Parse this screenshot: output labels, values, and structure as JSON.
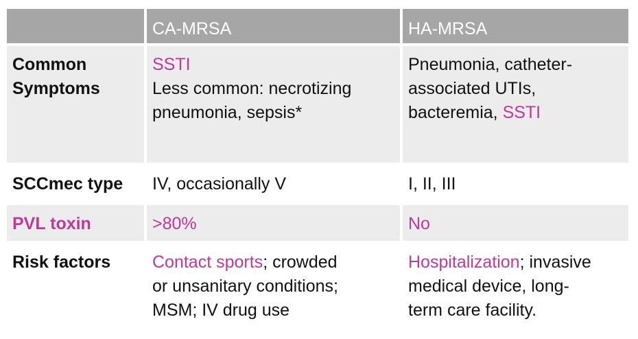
{
  "header": {
    "col1": "",
    "col2": "CA-MRSA",
    "col3": "HA-MRSA"
  },
  "rows": {
    "symptoms": {
      "label_line1": "Common",
      "label_line2": "Symptoms",
      "ca_highlight": "SSTI",
      "ca_line2": "Less common: necrotizing",
      "ca_line3": "pneumonia, sepsis*",
      "ha_line1": "Pneumonia, catheter-",
      "ha_line2": "associated UTIs,",
      "ha_line3_prefix": "bacteremia, ",
      "ha_line3_highlight": "SSTI"
    },
    "sccmec": {
      "label": "SCCmec type",
      "ca": "IV, occasionally V",
      "ha": "I, II, III"
    },
    "pvl": {
      "label": "PVL toxin",
      "ca": ">80%",
      "ha": "No"
    },
    "risk": {
      "label": "Risk factors",
      "ca_highlight": "Contact sports",
      "ca_line1_rest": "; crowded",
      "ca_line2": "or unsanitary conditions;",
      "ca_line3": "MSM; IV drug use",
      "ha_highlight": "Hospitalization",
      "ha_line1_rest": "; invasive",
      "ha_line2": "medical device, long-",
      "ha_line3": "term care facility."
    }
  },
  "colors": {
    "header_bg": "#a6a6a6",
    "band_bg": "#ececec",
    "highlight": "#c0399a"
  }
}
